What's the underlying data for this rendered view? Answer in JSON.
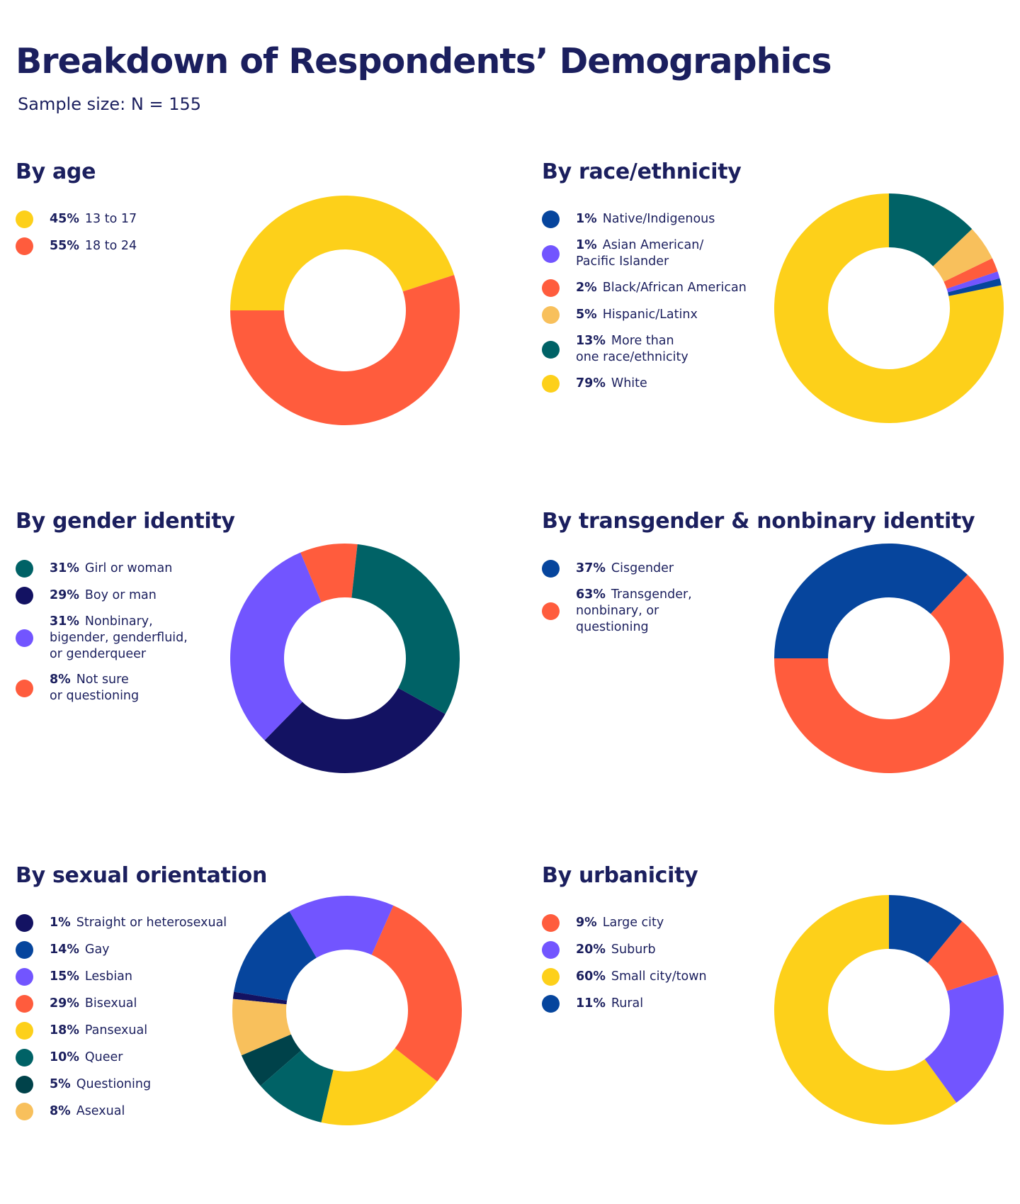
{
  "title": "Breakdown of Respondents’ Demographics",
  "subtitle": "Sample size: N = 155",
  "chart_data": [
    {
      "type": "pie",
      "title": "By age",
      "series": [
        {
          "pct_label": "45%",
          "name": "13 to 17",
          "value": 45,
          "color": "#fdd01a"
        },
        {
          "pct_label": "55%",
          "name": "18 to 24",
          "value": 55,
          "color": "#ff5c3d"
        }
      ]
    },
    {
      "type": "pie",
      "title": "By race/ethnicity",
      "series": [
        {
          "pct_label": "1%",
          "name": "Native/Indigenous",
          "value": 1,
          "color": "#06459d"
        },
        {
          "pct_label": "1%",
          "name": "Asian American/\nPacific Islander",
          "value": 1,
          "color": "#7255ff"
        },
        {
          "pct_label": "2%",
          "name": "Black/African American",
          "value": 2,
          "color": "#ff5c3d"
        },
        {
          "pct_label": "5%",
          "name": "Hispanic/Latinx",
          "value": 5,
          "color": "#f8c05c"
        },
        {
          "pct_label": "13%",
          "name": "More than\none race/ethnicity",
          "value": 13,
          "color": "#006266"
        },
        {
          "pct_label": "79%",
          "name": "White",
          "value": 79,
          "color": "#fdd01a"
        }
      ]
    },
    {
      "type": "pie",
      "title": "By gender identity",
      "series": [
        {
          "pct_label": "31%",
          "name": "Girl or woman",
          "value": 31,
          "color": "#006266"
        },
        {
          "pct_label": "29%",
          "name": "Boy or man",
          "value": 29,
          "color": "#131262"
        },
        {
          "pct_label": "31%",
          "name": "Nonbinary,\nbigender, genderfluid,\nor genderqueer",
          "value": 31,
          "color": "#7255ff"
        },
        {
          "pct_label": "8%",
          "name": "Not sure\nor questioning",
          "value": 8,
          "color": "#ff5c3d"
        }
      ]
    },
    {
      "type": "pie",
      "title": "By transgender & nonbinary identity",
      "series": [
        {
          "pct_label": "37%",
          "name": "Cisgender",
          "value": 37,
          "color": "#06459d"
        },
        {
          "pct_label": "63%",
          "name": "Transgender,\nnonbinary, or\nquestioning",
          "value": 63,
          "color": "#ff5c3d"
        }
      ]
    },
    {
      "type": "pie",
      "title": "By sexual orientation",
      "series": [
        {
          "pct_label": "1%",
          "name": "Straight or heterosexual",
          "value": 1,
          "color": "#131262"
        },
        {
          "pct_label": "14%",
          "name": "Gay",
          "value": 14,
          "color": "#06459d"
        },
        {
          "pct_label": "15%",
          "name": "Lesbian",
          "value": 15,
          "color": "#7255ff"
        },
        {
          "pct_label": "29%",
          "name": "Bisexual",
          "value": 29,
          "color": "#ff5c3d"
        },
        {
          "pct_label": "18%",
          "name": "Pansexual",
          "value": 18,
          "color": "#fdd01a"
        },
        {
          "pct_label": "10%",
          "name": "Queer",
          "value": 10,
          "color": "#006266"
        },
        {
          "pct_label": "5%",
          "name": "Questioning",
          "value": 5,
          "color": "#00424a"
        },
        {
          "pct_label": "8%",
          "name": "Asexual",
          "value": 8,
          "color": "#f8c05c"
        }
      ]
    },
    {
      "type": "pie",
      "title": "By urbanicity",
      "series": [
        {
          "pct_label": "9%",
          "name": "Large city",
          "value": 9,
          "color": "#ff5c3d"
        },
        {
          "pct_label": "20%",
          "name": "Suburb",
          "value": 20,
          "color": "#7255ff"
        },
        {
          "pct_label": "60%",
          "name": "Small city/town",
          "value": 60,
          "color": "#fdd01a"
        },
        {
          "pct_label": "11%",
          "name": "Rural",
          "value": 11,
          "color": "#06459d"
        }
      ]
    }
  ]
}
